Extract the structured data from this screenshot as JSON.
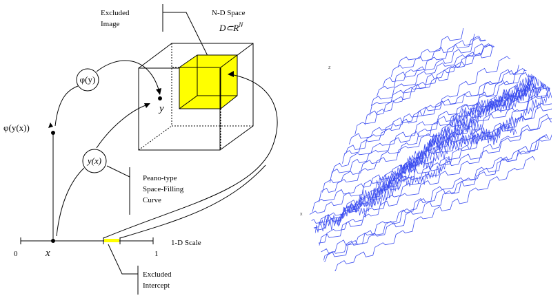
{
  "left_diagram": {
    "excluded_image_line1": "Excluded",
    "excluded_image_line2": "Image",
    "space_label": "N-D Space",
    "space_formula_D": "D",
    "space_formula_sub": "⊂",
    "space_formula_R": "R",
    "space_formula_N": "N",
    "phi_y_label": "φ(y)",
    "y_point_label": "y",
    "phi_y_x_label": "φ(y(x))",
    "y_x_label": "y(x)",
    "peano_line1": "Peano-type",
    "peano_line2": "Space-Filling",
    "peano_line3": "Curve",
    "scale_label": "1-D Scale",
    "zero_label": "0",
    "one_label": "1",
    "x_label": "x",
    "excluded_intercept_line1": "Excluded",
    "excluded_intercept_line2": "Intercept"
  },
  "right_plot": {
    "axis_z": "z",
    "axis_x": "x",
    "curve_color": "#3a4cf0"
  },
  "colors": {
    "highlight": "#ffff00",
    "ink": "#000000"
  }
}
